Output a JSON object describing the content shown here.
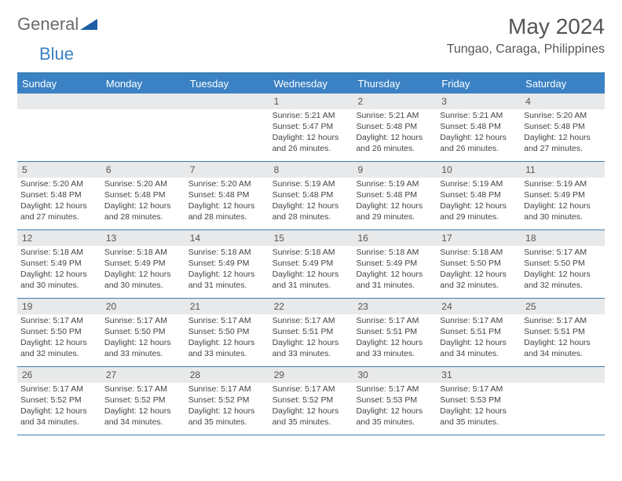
{
  "brand": {
    "general": "General",
    "blue": "Blue"
  },
  "title": "May 2024",
  "location": "Tungao, Caraga, Philippines",
  "weekdays": [
    "Sunday",
    "Monday",
    "Tuesday",
    "Wednesday",
    "Thursday",
    "Friday",
    "Saturday"
  ],
  "colors": {
    "header_bg": "#3b82c4",
    "border": "#3b7fb5",
    "daynum_bg": "#e8e9ea",
    "text": "#555555"
  },
  "weeks": [
    [
      {
        "n": "",
        "s": ""
      },
      {
        "n": "",
        "s": ""
      },
      {
        "n": "",
        "s": ""
      },
      {
        "n": "1",
        "s": "Sunrise: 5:21 AM\nSunset: 5:47 PM\nDaylight: 12 hours and 26 minutes."
      },
      {
        "n": "2",
        "s": "Sunrise: 5:21 AM\nSunset: 5:48 PM\nDaylight: 12 hours and 26 minutes."
      },
      {
        "n": "3",
        "s": "Sunrise: 5:21 AM\nSunset: 5:48 PM\nDaylight: 12 hours and 26 minutes."
      },
      {
        "n": "4",
        "s": "Sunrise: 5:20 AM\nSunset: 5:48 PM\nDaylight: 12 hours and 27 minutes."
      }
    ],
    [
      {
        "n": "5",
        "s": "Sunrise: 5:20 AM\nSunset: 5:48 PM\nDaylight: 12 hours and 27 minutes."
      },
      {
        "n": "6",
        "s": "Sunrise: 5:20 AM\nSunset: 5:48 PM\nDaylight: 12 hours and 28 minutes."
      },
      {
        "n": "7",
        "s": "Sunrise: 5:20 AM\nSunset: 5:48 PM\nDaylight: 12 hours and 28 minutes."
      },
      {
        "n": "8",
        "s": "Sunrise: 5:19 AM\nSunset: 5:48 PM\nDaylight: 12 hours and 28 minutes."
      },
      {
        "n": "9",
        "s": "Sunrise: 5:19 AM\nSunset: 5:48 PM\nDaylight: 12 hours and 29 minutes."
      },
      {
        "n": "10",
        "s": "Sunrise: 5:19 AM\nSunset: 5:48 PM\nDaylight: 12 hours and 29 minutes."
      },
      {
        "n": "11",
        "s": "Sunrise: 5:19 AM\nSunset: 5:49 PM\nDaylight: 12 hours and 30 minutes."
      }
    ],
    [
      {
        "n": "12",
        "s": "Sunrise: 5:18 AM\nSunset: 5:49 PM\nDaylight: 12 hours and 30 minutes."
      },
      {
        "n": "13",
        "s": "Sunrise: 5:18 AM\nSunset: 5:49 PM\nDaylight: 12 hours and 30 minutes."
      },
      {
        "n": "14",
        "s": "Sunrise: 5:18 AM\nSunset: 5:49 PM\nDaylight: 12 hours and 31 minutes."
      },
      {
        "n": "15",
        "s": "Sunrise: 5:18 AM\nSunset: 5:49 PM\nDaylight: 12 hours and 31 minutes."
      },
      {
        "n": "16",
        "s": "Sunrise: 5:18 AM\nSunset: 5:49 PM\nDaylight: 12 hours and 31 minutes."
      },
      {
        "n": "17",
        "s": "Sunrise: 5:18 AM\nSunset: 5:50 PM\nDaylight: 12 hours and 32 minutes."
      },
      {
        "n": "18",
        "s": "Sunrise: 5:17 AM\nSunset: 5:50 PM\nDaylight: 12 hours and 32 minutes."
      }
    ],
    [
      {
        "n": "19",
        "s": "Sunrise: 5:17 AM\nSunset: 5:50 PM\nDaylight: 12 hours and 32 minutes."
      },
      {
        "n": "20",
        "s": "Sunrise: 5:17 AM\nSunset: 5:50 PM\nDaylight: 12 hours and 33 minutes."
      },
      {
        "n": "21",
        "s": "Sunrise: 5:17 AM\nSunset: 5:50 PM\nDaylight: 12 hours and 33 minutes."
      },
      {
        "n": "22",
        "s": "Sunrise: 5:17 AM\nSunset: 5:51 PM\nDaylight: 12 hours and 33 minutes."
      },
      {
        "n": "23",
        "s": "Sunrise: 5:17 AM\nSunset: 5:51 PM\nDaylight: 12 hours and 33 minutes."
      },
      {
        "n": "24",
        "s": "Sunrise: 5:17 AM\nSunset: 5:51 PM\nDaylight: 12 hours and 34 minutes."
      },
      {
        "n": "25",
        "s": "Sunrise: 5:17 AM\nSunset: 5:51 PM\nDaylight: 12 hours and 34 minutes."
      }
    ],
    [
      {
        "n": "26",
        "s": "Sunrise: 5:17 AM\nSunset: 5:52 PM\nDaylight: 12 hours and 34 minutes."
      },
      {
        "n": "27",
        "s": "Sunrise: 5:17 AM\nSunset: 5:52 PM\nDaylight: 12 hours and 34 minutes."
      },
      {
        "n": "28",
        "s": "Sunrise: 5:17 AM\nSunset: 5:52 PM\nDaylight: 12 hours and 35 minutes."
      },
      {
        "n": "29",
        "s": "Sunrise: 5:17 AM\nSunset: 5:52 PM\nDaylight: 12 hours and 35 minutes."
      },
      {
        "n": "30",
        "s": "Sunrise: 5:17 AM\nSunset: 5:53 PM\nDaylight: 12 hours and 35 minutes."
      },
      {
        "n": "31",
        "s": "Sunrise: 5:17 AM\nSunset: 5:53 PM\nDaylight: 12 hours and 35 minutes."
      },
      {
        "n": "",
        "s": ""
      }
    ]
  ]
}
